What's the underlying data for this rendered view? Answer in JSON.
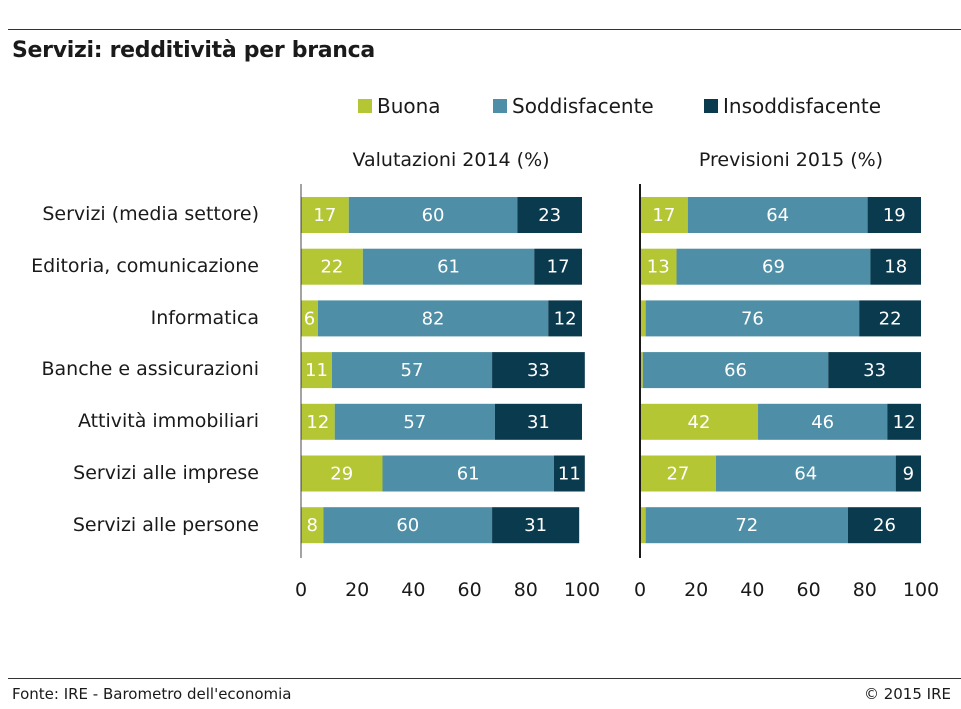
{
  "title": "Servizi: redditività per branca",
  "footer": {
    "source": "Fonte: IRE - Barometro dell'economia",
    "copyright": "© 2015 IRE"
  },
  "colors": {
    "buona": "#b5c634",
    "soddisfacente": "#4e8ea6",
    "insoddisfacente": "#0a3a4e"
  },
  "legend": [
    "Buona",
    "Soddisfacente",
    "Insoddisfacente"
  ],
  "chart_data": [
    {
      "type": "bar",
      "orientation": "horizontal-stacked",
      "title": "Valutazioni 2014 (%)",
      "categories": [
        "Servizi (media settore)",
        "Editoria, comunicazione",
        "Informatica",
        "Banche e assicurazioni",
        "Attività immobiliari",
        "Servizi alle imprese",
        "Servizi alle persone"
      ],
      "series": [
        {
          "name": "Buona",
          "values": [
            17,
            22,
            6,
            11,
            12,
            29,
            8
          ],
          "labels": [
            "17",
            "22",
            "6",
            "11",
            "12",
            "29",
            "8"
          ]
        },
        {
          "name": "Soddisfacente",
          "values": [
            60,
            61,
            82,
            57,
            57,
            61,
            60
          ],
          "labels": [
            "60",
            "61",
            "82",
            "57",
            "57",
            "61",
            "60"
          ]
        },
        {
          "name": "Insoddisfacente",
          "values": [
            23,
            17,
            12,
            33,
            31,
            11,
            31
          ],
          "labels": [
            "23",
            "17",
            "12",
            "33",
            "31",
            "11",
            "31"
          ]
        }
      ],
      "xlim": [
        0,
        100
      ],
      "xticks": [
        "0",
        "20",
        "40",
        "60",
        "80",
        "100"
      ]
    },
    {
      "type": "bar",
      "orientation": "horizontal-stacked",
      "title": "Previsioni 2015 (%)",
      "categories": [
        "Servizi (media settore)",
        "Editoria, comunicazione",
        "Informatica",
        "Banche e assicurazioni",
        "Attività immobiliari",
        "Servizi alle imprese",
        "Servizi alle persone"
      ],
      "series": [
        {
          "name": "Buona",
          "values": [
            17,
            13,
            2,
            1,
            42,
            27,
            2
          ],
          "labels": [
            "17",
            "13",
            "",
            "",
            "42",
            "27",
            ""
          ]
        },
        {
          "name": "Soddisfacente",
          "values": [
            64,
            69,
            76,
            66,
            46,
            64,
            72
          ],
          "labels": [
            "64",
            "69",
            "76",
            "66",
            "46",
            "64",
            "72"
          ]
        },
        {
          "name": "Insoddisfacente",
          "values": [
            19,
            18,
            22,
            33,
            12,
            9,
            26
          ],
          "labels": [
            "19",
            "18",
            "22",
            "33",
            "12",
            "9",
            "26"
          ]
        }
      ],
      "xlim": [
        0,
        100
      ],
      "xticks": [
        "0",
        "20",
        "40",
        "60",
        "80",
        "100"
      ]
    }
  ]
}
